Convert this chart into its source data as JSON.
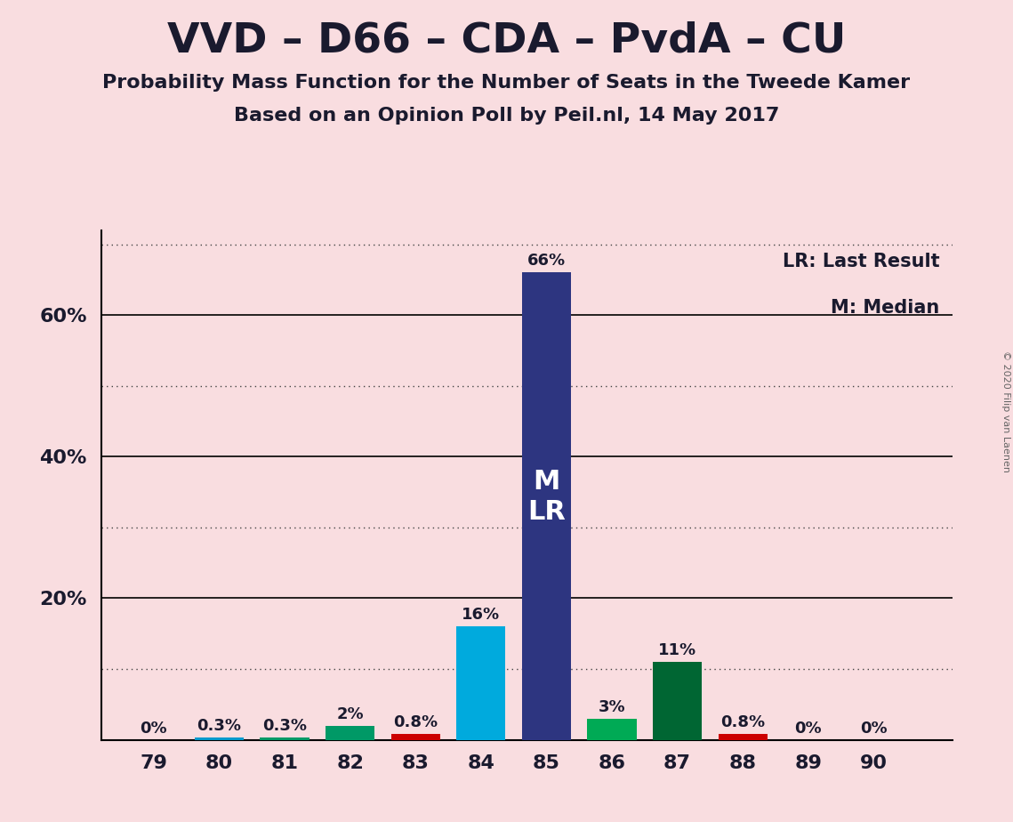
{
  "title": "VVD – D66 – CDA – PvdA – CU",
  "subtitle1": "Probability Mass Function for the Number of Seats in the Tweede Kamer",
  "subtitle2": "Based on an Opinion Poll by Peil.nl, 14 May 2017",
  "copyright": "© 2020 Filip van Laenen",
  "legend_lr": "LR: Last Result",
  "legend_m": "M: Median",
  "x_seats": [
    79,
    80,
    81,
    82,
    83,
    84,
    85,
    86,
    87,
    88,
    89,
    90
  ],
  "probabilities": [
    0.0,
    0.003,
    0.003,
    0.02,
    0.008,
    0.16,
    0.66,
    0.03,
    0.11,
    0.008,
    0.0,
    0.0
  ],
  "labels": [
    "0%",
    "0.3%",
    "0.3%",
    "2%",
    "0.8%",
    "16%",
    "66%",
    "3%",
    "11%",
    "0.8%",
    "0%",
    "0%"
  ],
  "bar_colors": [
    "#0099cc",
    "#0099cc",
    "#009966",
    "#009966",
    "#cc0000",
    "#00aadd",
    "#2d3580",
    "#00aa55",
    "#006633",
    "#cc0000",
    "#0099cc",
    "#0099cc"
  ],
  "median_seat": 85,
  "last_result_seat": 85,
  "background_color": "#f9dde0",
  "ylim": [
    0,
    0.72
  ],
  "ytick_positions": [
    0.2,
    0.4,
    0.6
  ],
  "ytick_labels": [
    "20%",
    "40%",
    "60%"
  ],
  "solid_line_yticks": [
    0.2,
    0.4,
    0.6
  ],
  "dotted_line_yticks": [
    0.1,
    0.3,
    0.5,
    0.7
  ],
  "bar_width": 0.75
}
